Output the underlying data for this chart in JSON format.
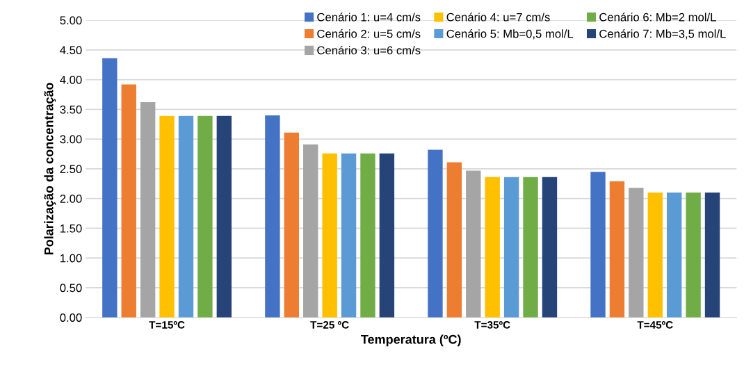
{
  "chart_data": {
    "type": "bar",
    "xlabel": "Temperatura (ºC)",
    "ylabel": "Polarização da concentração",
    "categories": [
      "T=15ºC",
      "T=25 ºC",
      "T=35ºC",
      "T=45ºC"
    ],
    "series": [
      {
        "name": "Cenário 1: u=4 cm/s",
        "color": "#4472c4",
        "values": [
          4.36,
          3.4,
          2.82,
          2.45
        ]
      },
      {
        "name": "Cenário 2: u=5 cm/s",
        "color": "#ed7d31",
        "values": [
          3.92,
          3.11,
          2.61,
          2.29
        ]
      },
      {
        "name": "Cenário 3: u=6 cm/s",
        "color": "#a5a5a5",
        "values": [
          3.62,
          2.91,
          2.47,
          2.18
        ]
      },
      {
        "name": "Cenário 4: u=7 cm/s",
        "color": "#ffc000",
        "values": [
          3.39,
          2.76,
          2.36,
          2.1
        ]
      },
      {
        "name": "Cenário 5: Mb=0,5 mol/L",
        "color": "#5b9bd5",
        "values": [
          3.39,
          2.76,
          2.36,
          2.1
        ]
      },
      {
        "name": "Cenário 6: Mb=2 mol/L",
        "color": "#70ad47",
        "values": [
          3.39,
          2.76,
          2.36,
          2.1
        ]
      },
      {
        "name": "Cenário 7: Mb=3,5 mol/L",
        "color": "#264478",
        "values": [
          3.39,
          2.76,
          2.36,
          2.1
        ]
      }
    ],
    "ylim": [
      0,
      5
    ],
    "yticks": [
      {
        "value": 0,
        "label": "0.00"
      },
      {
        "value": 0.5,
        "label": "0.50"
      },
      {
        "value": 1,
        "label": "1.00"
      },
      {
        "value": 1.5,
        "label": "1.50"
      },
      {
        "value": 2,
        "label": "2.00"
      },
      {
        "value": 2.5,
        "label": "2.50"
      },
      {
        "value": 3,
        "label": "3.00"
      },
      {
        "value": 3.5,
        "label": "3.50"
      },
      {
        "value": 4,
        "label": "4.00"
      },
      {
        "value": 4.5,
        "label": "4.50"
      },
      {
        "value": 5,
        "label": "5.00"
      }
    ],
    "grid": "y",
    "legend": "top right"
  }
}
